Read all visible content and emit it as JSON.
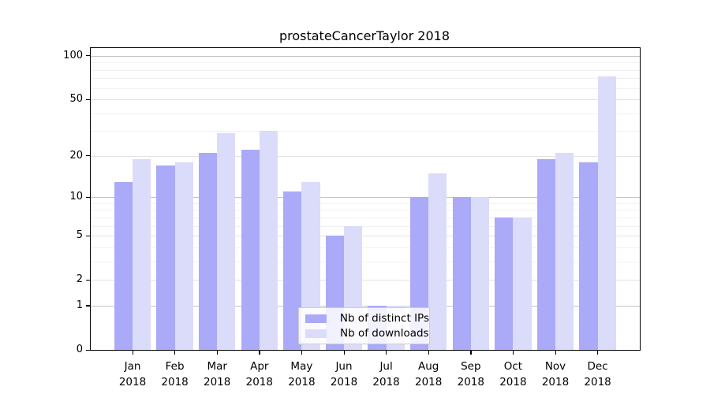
{
  "chart_data": {
    "type": "bar",
    "title": "prostateCancerTaylor 2018",
    "categories": [
      "Jan",
      "Feb",
      "Mar",
      "Apr",
      "May",
      "Jun",
      "Jul",
      "Aug",
      "Sep",
      "Oct",
      "Nov",
      "Dec"
    ],
    "x_tick_year": "2018",
    "series": [
      {
        "name": "Nb of distinct IPs",
        "color": "#aaaaf8",
        "values": [
          13,
          17,
          21,
          22,
          11,
          5,
          1,
          10,
          10,
          7,
          19,
          18
        ]
      },
      {
        "name": "Nb of downloads",
        "color": "#dbdbfa",
        "values": [
          19,
          18,
          29,
          30,
          13,
          6,
          1,
          15,
          10,
          7,
          21,
          72
        ]
      }
    ],
    "y_axis": {
      "scale": "log1p",
      "tick_values": [
        0,
        1,
        2,
        5,
        10,
        20,
        50,
        100
      ],
      "minor_gridline_values": [
        3,
        4,
        6,
        7,
        8,
        9,
        30,
        40,
        60,
        70,
        80,
        90
      ],
      "range_max": 100
    },
    "legend": {
      "position": "inside-bottom-center"
    },
    "grid": "on"
  },
  "style_colors": {
    "decade_gridline": "#c3c3c3",
    "major_gridline": "#e3e3e3",
    "minor_gridline": "#f1f1f1",
    "axis": "#000000",
    "legend_border": "#cccccc"
  }
}
